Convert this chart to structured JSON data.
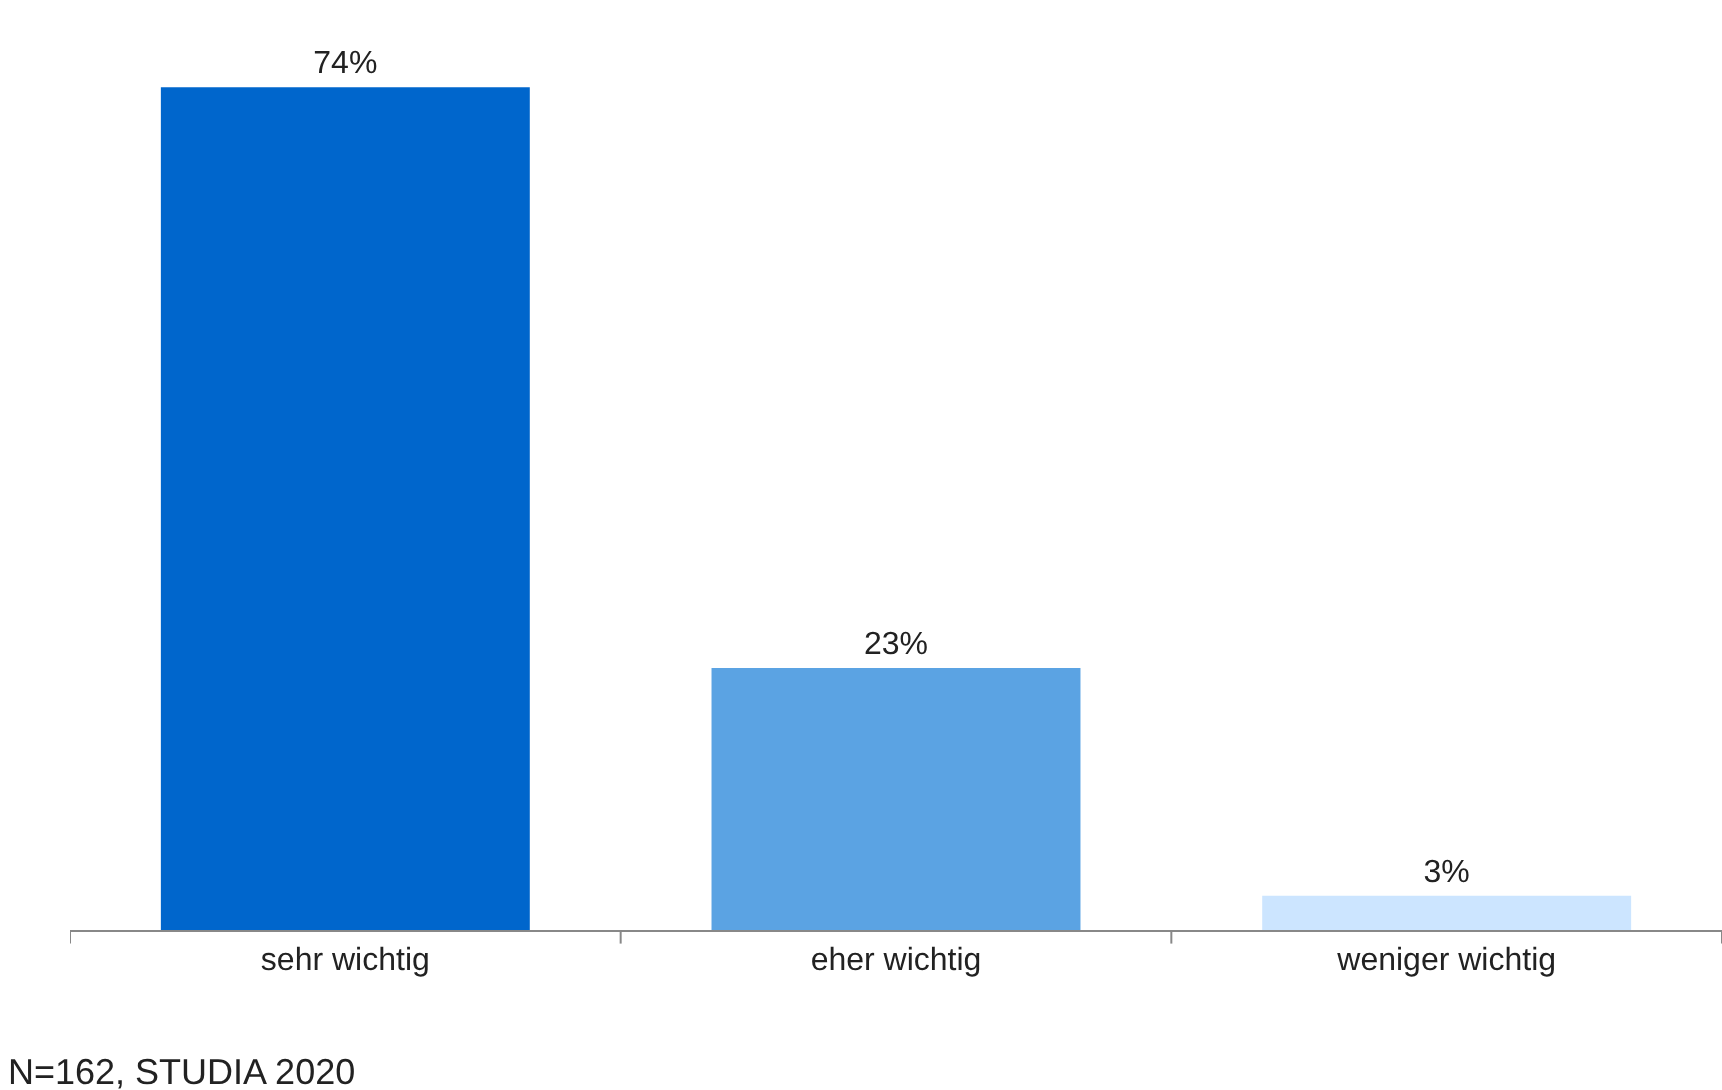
{
  "chart_data": {
    "type": "bar",
    "categories": [
      "sehr wichtig",
      "eher wichtig",
      "weniger wichtig"
    ],
    "values": [
      74,
      23,
      3
    ],
    "colors": [
      "#0066cc",
      "#5ba3e3",
      "#cce5ff"
    ],
    "value_labels": [
      "74%",
      "23%",
      "3%"
    ],
    "annotations": [
      "N=162, STUDIA 2020"
    ]
  }
}
